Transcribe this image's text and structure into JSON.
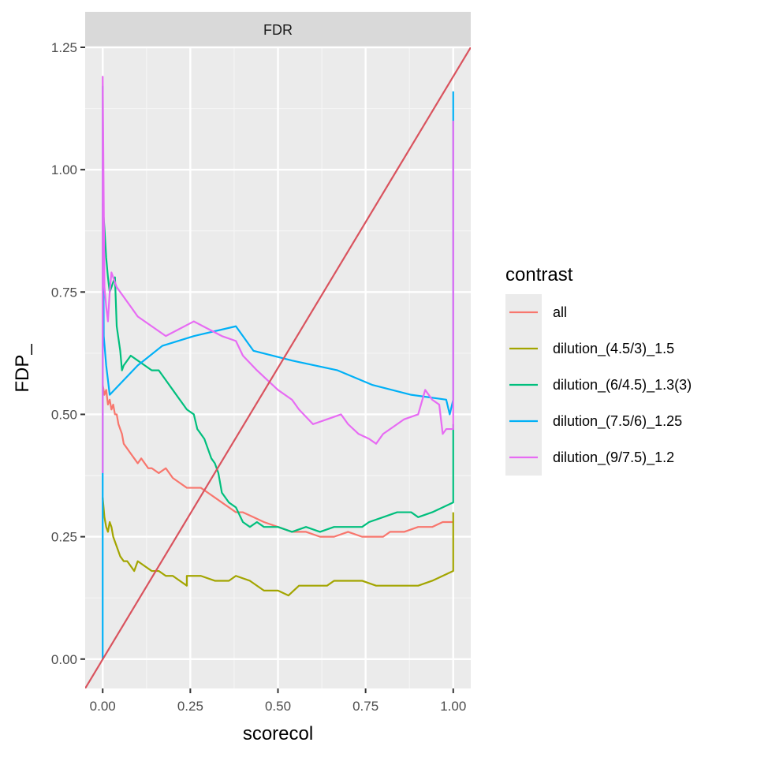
{
  "chart_data": {
    "type": "line",
    "facet_label": "FDR",
    "xlabel": "scorecol",
    "ylabel": "FDP_",
    "xlim": [
      -0.05,
      1.05
    ],
    "ylim": [
      -0.06,
      1.25
    ],
    "x_ticks": [
      0.0,
      0.25,
      0.5,
      0.75,
      1.0
    ],
    "x_tick_labels": [
      "0.00",
      "0.25",
      "0.50",
      "0.75",
      "1.00"
    ],
    "y_ticks": [
      0.0,
      0.25,
      0.5,
      0.75,
      1.0,
      1.25
    ],
    "y_tick_labels": [
      "0.00",
      "0.25",
      "0.50",
      "0.75",
      "1.00",
      "1.25"
    ],
    "grid": true,
    "legend": {
      "title": "contrast",
      "placement": "right"
    },
    "reference_line": {
      "x": [
        -0.05,
        1.05
      ],
      "y": [
        -0.06,
        1.25
      ],
      "color": "#d9535e"
    },
    "series": [
      {
        "name": "all",
        "color": "#f8766d",
        "points": [
          [
            0.0,
            0.56
          ],
          [
            0.005,
            0.54
          ],
          [
            0.01,
            0.55
          ],
          [
            0.015,
            0.52
          ],
          [
            0.02,
            0.53
          ],
          [
            0.025,
            0.51
          ],
          [
            0.03,
            0.52
          ],
          [
            0.035,
            0.5
          ],
          [
            0.04,
            0.5
          ],
          [
            0.045,
            0.48
          ],
          [
            0.05,
            0.47
          ],
          [
            0.055,
            0.46
          ],
          [
            0.06,
            0.44
          ],
          [
            0.07,
            0.43
          ],
          [
            0.08,
            0.42
          ],
          [
            0.09,
            0.41
          ],
          [
            0.1,
            0.4
          ],
          [
            0.11,
            0.41
          ],
          [
            0.12,
            0.4
          ],
          [
            0.13,
            0.39
          ],
          [
            0.14,
            0.39
          ],
          [
            0.16,
            0.38
          ],
          [
            0.18,
            0.39
          ],
          [
            0.2,
            0.37
          ],
          [
            0.22,
            0.36
          ],
          [
            0.24,
            0.35
          ],
          [
            0.26,
            0.35
          ],
          [
            0.28,
            0.35
          ],
          [
            0.3,
            0.34
          ],
          [
            0.32,
            0.33
          ],
          [
            0.34,
            0.32
          ],
          [
            0.36,
            0.31
          ],
          [
            0.38,
            0.3
          ],
          [
            0.4,
            0.3
          ],
          [
            0.43,
            0.29
          ],
          [
            0.46,
            0.28
          ],
          [
            0.5,
            0.27
          ],
          [
            0.54,
            0.26
          ],
          [
            0.58,
            0.26
          ],
          [
            0.62,
            0.25
          ],
          [
            0.66,
            0.25
          ],
          [
            0.7,
            0.26
          ],
          [
            0.74,
            0.25
          ],
          [
            0.78,
            0.25
          ],
          [
            0.8,
            0.25
          ],
          [
            0.82,
            0.26
          ],
          [
            0.86,
            0.26
          ],
          [
            0.9,
            0.27
          ],
          [
            0.94,
            0.27
          ],
          [
            0.97,
            0.28
          ],
          [
            1.0,
            0.28
          ]
        ]
      },
      {
        "name": "dilution_(4.5/3)_1.5",
        "color": "#a3a500",
        "points": [
          [
            0.0,
            0.33
          ],
          [
            0.005,
            0.29
          ],
          [
            0.01,
            0.27
          ],
          [
            0.015,
            0.26
          ],
          [
            0.02,
            0.28
          ],
          [
            0.025,
            0.27
          ],
          [
            0.03,
            0.25
          ],
          [
            0.04,
            0.23
          ],
          [
            0.05,
            0.21
          ],
          [
            0.06,
            0.2
          ],
          [
            0.07,
            0.2
          ],
          [
            0.08,
            0.19
          ],
          [
            0.09,
            0.18
          ],
          [
            0.1,
            0.2
          ],
          [
            0.12,
            0.19
          ],
          [
            0.14,
            0.18
          ],
          [
            0.16,
            0.18
          ],
          [
            0.18,
            0.17
          ],
          [
            0.2,
            0.17
          ],
          [
            0.22,
            0.16
          ],
          [
            0.24,
            0.15
          ],
          [
            0.24,
            0.17
          ],
          [
            0.28,
            0.17
          ],
          [
            0.32,
            0.16
          ],
          [
            0.36,
            0.16
          ],
          [
            0.38,
            0.17
          ],
          [
            0.42,
            0.16
          ],
          [
            0.46,
            0.14
          ],
          [
            0.5,
            0.14
          ],
          [
            0.53,
            0.13
          ],
          [
            0.56,
            0.15
          ],
          [
            0.6,
            0.15
          ],
          [
            0.64,
            0.15
          ],
          [
            0.66,
            0.16
          ],
          [
            0.7,
            0.16
          ],
          [
            0.74,
            0.16
          ],
          [
            0.78,
            0.15
          ],
          [
            0.82,
            0.15
          ],
          [
            0.86,
            0.15
          ],
          [
            0.9,
            0.15
          ],
          [
            0.94,
            0.16
          ],
          [
            0.97,
            0.17
          ],
          [
            1.0,
            0.18
          ],
          [
            1.0,
            0.3
          ]
        ]
      },
      {
        "name": "dilution_(6/4.5)_1.3(3)",
        "color": "#00bf7d",
        "points": [
          [
            0.0,
            0.93
          ],
          [
            0.005,
            0.88
          ],
          [
            0.01,
            0.82
          ],
          [
            0.015,
            0.78
          ],
          [
            0.02,
            0.75
          ],
          [
            0.03,
            0.77
          ],
          [
            0.035,
            0.78
          ],
          [
            0.04,
            0.68
          ],
          [
            0.05,
            0.63
          ],
          [
            0.055,
            0.59
          ],
          [
            0.06,
            0.6
          ],
          [
            0.08,
            0.62
          ],
          [
            0.1,
            0.61
          ],
          [
            0.12,
            0.6
          ],
          [
            0.14,
            0.59
          ],
          [
            0.16,
            0.59
          ],
          [
            0.18,
            0.57
          ],
          [
            0.2,
            0.55
          ],
          [
            0.22,
            0.53
          ],
          [
            0.24,
            0.51
          ],
          [
            0.26,
            0.5
          ],
          [
            0.27,
            0.47
          ],
          [
            0.28,
            0.46
          ],
          [
            0.29,
            0.45
          ],
          [
            0.3,
            0.43
          ],
          [
            0.31,
            0.41
          ],
          [
            0.32,
            0.4
          ],
          [
            0.33,
            0.38
          ],
          [
            0.34,
            0.34
          ],
          [
            0.36,
            0.32
          ],
          [
            0.38,
            0.31
          ],
          [
            0.4,
            0.28
          ],
          [
            0.42,
            0.27
          ],
          [
            0.44,
            0.28
          ],
          [
            0.46,
            0.27
          ],
          [
            0.5,
            0.27
          ],
          [
            0.54,
            0.26
          ],
          [
            0.58,
            0.27
          ],
          [
            0.62,
            0.26
          ],
          [
            0.66,
            0.27
          ],
          [
            0.7,
            0.27
          ],
          [
            0.74,
            0.27
          ],
          [
            0.76,
            0.28
          ],
          [
            0.8,
            0.29
          ],
          [
            0.84,
            0.3
          ],
          [
            0.88,
            0.3
          ],
          [
            0.9,
            0.29
          ],
          [
            0.94,
            0.3
          ],
          [
            0.97,
            0.31
          ],
          [
            1.0,
            0.32
          ],
          [
            1.0,
            0.48
          ]
        ]
      },
      {
        "name": "dilution_(7.5/6)_1.25",
        "color": "#00b0f6",
        "points": [
          [
            0.0,
            0.0
          ],
          [
            0.0,
            0.4
          ],
          [
            0.0,
            1.17
          ],
          [
            0.003,
            0.66
          ],
          [
            0.01,
            0.6
          ],
          [
            0.02,
            0.54
          ],
          [
            0.1,
            0.6
          ],
          [
            0.17,
            0.64
          ],
          [
            0.26,
            0.66
          ],
          [
            0.38,
            0.68
          ],
          [
            0.43,
            0.63
          ],
          [
            0.54,
            0.61
          ],
          [
            0.67,
            0.59
          ],
          [
            0.77,
            0.56
          ],
          [
            0.88,
            0.54
          ],
          [
            0.98,
            0.53
          ],
          [
            0.99,
            0.5
          ],
          [
            1.0,
            0.53
          ],
          [
            1.0,
            1.16
          ]
        ]
      },
      {
        "name": "dilution_(9/7.5)_1.2",
        "color": "#e76bf3",
        "points": [
          [
            0.0,
            0.38
          ],
          [
            0.0,
            1.19
          ],
          [
            0.005,
            0.76
          ],
          [
            0.01,
            0.72
          ],
          [
            0.015,
            0.69
          ],
          [
            0.02,
            0.75
          ],
          [
            0.025,
            0.79
          ],
          [
            0.03,
            0.78
          ],
          [
            0.04,
            0.76
          ],
          [
            0.06,
            0.74
          ],
          [
            0.08,
            0.72
          ],
          [
            0.1,
            0.7
          ],
          [
            0.14,
            0.68
          ],
          [
            0.18,
            0.66
          ],
          [
            0.26,
            0.69
          ],
          [
            0.34,
            0.66
          ],
          [
            0.38,
            0.65
          ],
          [
            0.4,
            0.62
          ],
          [
            0.44,
            0.59
          ],
          [
            0.47,
            0.57
          ],
          [
            0.5,
            0.55
          ],
          [
            0.54,
            0.53
          ],
          [
            0.56,
            0.51
          ],
          [
            0.6,
            0.48
          ],
          [
            0.64,
            0.49
          ],
          [
            0.68,
            0.5
          ],
          [
            0.7,
            0.48
          ],
          [
            0.73,
            0.46
          ],
          [
            0.76,
            0.45
          ],
          [
            0.78,
            0.44
          ],
          [
            0.8,
            0.46
          ],
          [
            0.84,
            0.48
          ],
          [
            0.86,
            0.49
          ],
          [
            0.9,
            0.5
          ],
          [
            0.92,
            0.55
          ],
          [
            0.94,
            0.53
          ],
          [
            0.96,
            0.52
          ],
          [
            0.97,
            0.46
          ],
          [
            0.98,
            0.47
          ],
          [
            1.0,
            0.47
          ],
          [
            1.0,
            1.1
          ]
        ]
      }
    ]
  }
}
